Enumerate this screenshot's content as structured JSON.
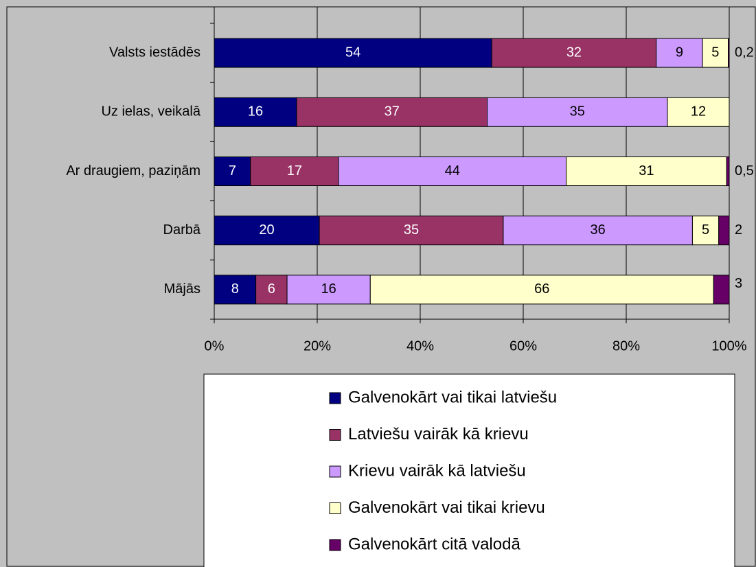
{
  "chart_data": {
    "type": "bar",
    "orientation": "horizontal",
    "stacked": "percent",
    "categories": [
      "Valsts iestādēs",
      "Uz ielas, veikalā",
      "Ar draugiem, paziņām",
      "Darbā",
      "Mājās"
    ],
    "series": [
      {
        "name": "Galvenokārt vai tikai latviešu",
        "color": "#000080",
        "label_color": "#ffffff",
        "values": [
          54,
          16,
          7,
          20,
          8
        ]
      },
      {
        "name": "Latviešu vairāk kā krievu",
        "color": "#993366",
        "label_color": "#ffffff",
        "values": [
          32,
          37,
          17,
          35,
          6
        ]
      },
      {
        "name": "Krievu vairāk kā latviešu",
        "color": "#cc99ff",
        "label_color": "#000000",
        "values": [
          9,
          35,
          44,
          36,
          16
        ]
      },
      {
        "name": "Galvenokārt vai tikai krievu",
        "color": "#ffffcc",
        "label_color": "#000000",
        "values": [
          5,
          12,
          31,
          5,
          66
        ]
      },
      {
        "name": "Galvenokārt citā valodā",
        "color": "#660066",
        "label_color": "#000000",
        "label_position": "outside",
        "values": [
          0.2,
          0,
          0.5,
          2,
          3
        ],
        "value_labels": [
          "0,2",
          null,
          "0,5",
          "2",
          "3"
        ]
      }
    ],
    "xlim": [
      0,
      100
    ],
    "xticks": [
      {
        "value": 0,
        "label": "0%"
      },
      {
        "value": 20,
        "label": "20%"
      },
      {
        "value": 40,
        "label": "40%"
      },
      {
        "value": 60,
        "label": "60%"
      },
      {
        "value": 80,
        "label": "80%"
      },
      {
        "value": 100,
        "label": "100%"
      }
    ],
    "grid": true
  }
}
